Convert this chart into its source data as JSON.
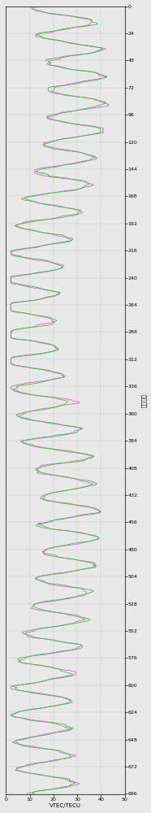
{
  "title": "",
  "xlabel_bottom": "VTEC/TECU",
  "ylabel_right": "累计小时",
  "xlim": [
    0,
    50
  ],
  "ylim": [
    0,
    696
  ],
  "xticks": [
    0,
    10,
    20,
    30,
    40,
    50
  ],
  "yticks": [
    0,
    24,
    48,
    72,
    96,
    120,
    144,
    168,
    192,
    216,
    240,
    264,
    288,
    312,
    336,
    360,
    384,
    408,
    432,
    456,
    480,
    504,
    528,
    552,
    576,
    600,
    624,
    648,
    672,
    696
  ],
  "line1_color": "#cc66cc",
  "line2_color": "#44bb44",
  "background_color": "#e8e8e8",
  "linewidth": 0.6,
  "figsize": [
    1.86,
    10.0
  ],
  "dpi": 100,
  "grid_color": "#bbbbbb",
  "tick_fontsize": 4.5,
  "label_fontsize": 5.0
}
